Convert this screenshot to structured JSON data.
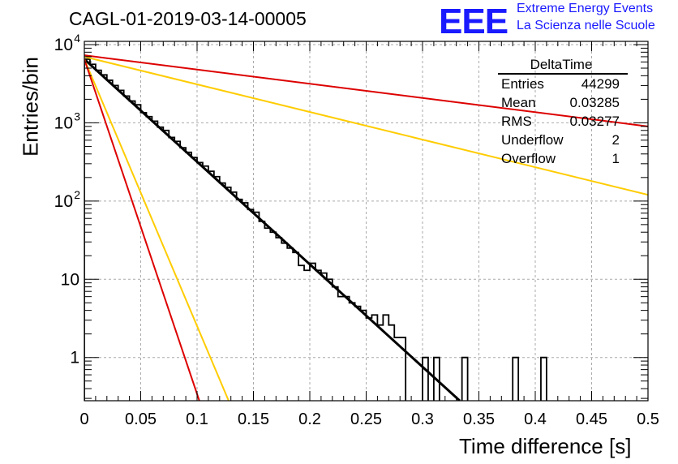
{
  "header": {
    "title": "CAGL-01-2019-03-14-00005",
    "logo_text": "EEE",
    "logo_line1": "Extreme Energy Events",
    "logo_line2": "La Scienza nelle Scuole"
  },
  "stats": {
    "title": "DeltaTime",
    "rows": [
      {
        "key": "Entries",
        "value": "44299"
      },
      {
        "key": "Mean",
        "value": "0.03285"
      },
      {
        "key": "RMS",
        "value": "0.03277"
      },
      {
        "key": "Underflow",
        "value": "2"
      },
      {
        "key": "Overflow",
        "value": "1"
      }
    ]
  },
  "chart_data": {
    "type": "histogram",
    "xlabel": "Time difference [s]",
    "ylabel": "Entries/bin",
    "xlim": [
      0,
      0.5
    ],
    "ylim": [
      0.28,
      11000
    ],
    "y_scale": "log",
    "grid": true,
    "x_ticks": [
      "0",
      "0.05",
      "0.1",
      "0.15",
      "0.2",
      "0.25",
      "0.3",
      "0.35",
      "0.4",
      "0.45",
      "0.5"
    ],
    "y_ticks": [
      {
        "value": 1,
        "label": "1",
        "sup": ""
      },
      {
        "value": 10,
        "label": "10",
        "sup": ""
      },
      {
        "value": 100,
        "label": "10",
        "sup": "2"
      },
      {
        "value": 1000,
        "label": "10",
        "sup": "3"
      },
      {
        "value": 10000,
        "label": "10",
        "sup": "4"
      }
    ],
    "bin_width": 0.005,
    "histogram_counts": [
      6500,
      5600,
      4700,
      4100,
      3500,
      3000,
      2600,
      2200,
      1900,
      1700,
      1350,
      1200,
      1050,
      880,
      800,
      650,
      580,
      480,
      420,
      360,
      310,
      280,
      240,
      205,
      170,
      150,
      130,
      105,
      95,
      78,
      72,
      55,
      45,
      40,
      34,
      29,
      25,
      22,
      15,
      13,
      16,
      13,
      12,
      10,
      8,
      6,
      6,
      5,
      4.5,
      4,
      3.2,
      3.5,
      2.6,
      3.5,
      2.6,
      1.8,
      1.8,
      0,
      0,
      0,
      1,
      0,
      1,
      0,
      0,
      0,
      0,
      1,
      0,
      0,
      0,
      0,
      0,
      0,
      0,
      0,
      1,
      0,
      0,
      0,
      0,
      1,
      0,
      0,
      0,
      0,
      0,
      0,
      0,
      0,
      0,
      0,
      0,
      0,
      0,
      0,
      0,
      0,
      0,
      0
    ],
    "series": [
      {
        "color": "#000000",
        "points": [
          [
            0,
            6500
          ],
          [
            0.333,
            0.28
          ]
        ]
      },
      {
        "color": "#dd0000",
        "points": [
          [
            0,
            7300
          ],
          [
            0.5,
            900
          ]
        ]
      },
      {
        "color": "#ffcc00",
        "points": [
          [
            0,
            7000
          ],
          [
            0.5,
            120
          ]
        ]
      },
      {
        "color": "#ffcc00",
        "points": [
          [
            0,
            6500
          ],
          [
            0.128,
            0.28
          ]
        ]
      },
      {
        "color": "#dd0000",
        "points": [
          [
            0,
            6500
          ],
          [
            0.102,
            0.28
          ]
        ]
      }
    ]
  }
}
